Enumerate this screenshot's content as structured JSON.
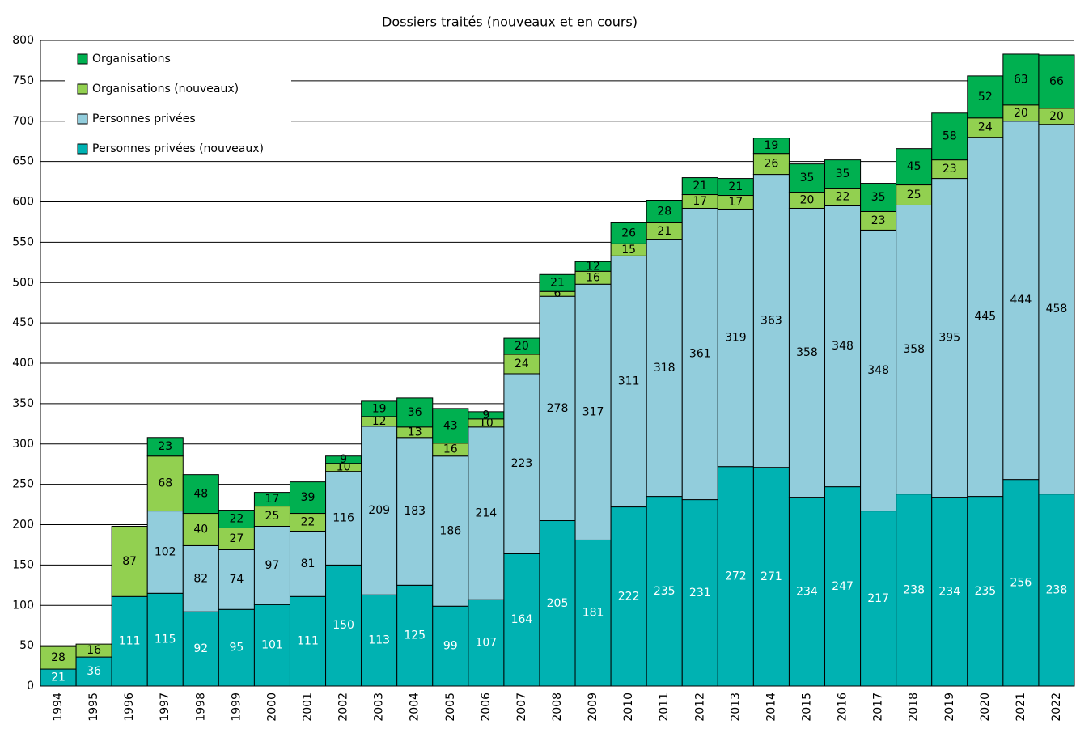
{
  "chart_data": {
    "type": "stacked_bar",
    "title": "Dossiers traités (nouveaux et en cours)",
    "categories": [
      "1994",
      "1995",
      "1996",
      "1997",
      "1998",
      "1999",
      "2000",
      "2001",
      "2002",
      "2003",
      "2004",
      "2005",
      "2006",
      "2007",
      "2008",
      "2009",
      "2010",
      "2011",
      "2012",
      "2013",
      "2014",
      "2015",
      "2016",
      "2017",
      "2018",
      "2019",
      "2020",
      "2021",
      "2022"
    ],
    "series": [
      {
        "name": "Personnes privées (nouveaux)",
        "color": "#00b2b2",
        "values": [
          21,
          36,
          111,
          115,
          92,
          95,
          101,
          111,
          150,
          113,
          125,
          99,
          107,
          164,
          205,
          181,
          222,
          235,
          231,
          272,
          271,
          234,
          247,
          217,
          238,
          234,
          235,
          256,
          238
        ]
      },
      {
        "name": "Personnes privées",
        "color": "#92cddc",
        "values": [
          null,
          null,
          null,
          102,
          82,
          74,
          97,
          81,
          116,
          209,
          183,
          186,
          214,
          223,
          278,
          317,
          311,
          318,
          361,
          319,
          363,
          358,
          348,
          348,
          358,
          395,
          445,
          444,
          458
        ]
      },
      {
        "name": "Organisations (nouveaux)",
        "color": "#92d050",
        "values": [
          28,
          16,
          87,
          68,
          40,
          27,
          25,
          22,
          10,
          12,
          13,
          16,
          10,
          24,
          6,
          16,
          15,
          21,
          17,
          17,
          26,
          20,
          22,
          23,
          25,
          23,
          24,
          20,
          20
        ]
      },
      {
        "name": "Organisations",
        "color": "#00b050",
        "values": [
          null,
          null,
          null,
          23,
          48,
          22,
          17,
          39,
          9,
          19,
          36,
          43,
          9,
          20,
          21,
          12,
          26,
          28,
          21,
          21,
          19,
          35,
          35,
          35,
          45,
          58,
          52,
          63,
          66
        ]
      }
    ],
    "ylim": [
      0,
      800
    ],
    "yticks": [
      0,
      50,
      100,
      150,
      200,
      250,
      300,
      350,
      400,
      450,
      500,
      550,
      600,
      650,
      700,
      750,
      800
    ],
    "grid": true,
    "legend": "top-left"
  }
}
